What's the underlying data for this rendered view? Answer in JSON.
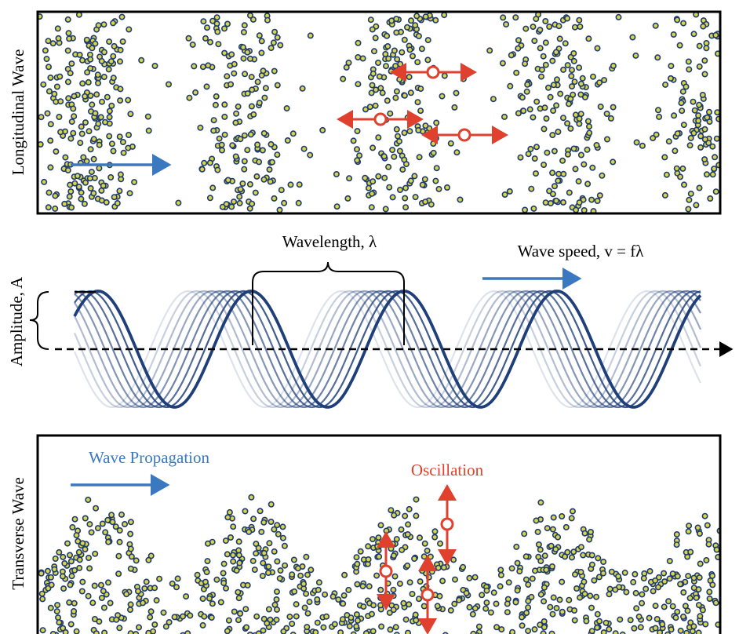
{
  "longitudinal": {
    "label": "Longitudinal Wave"
  },
  "middle": {
    "wavelength_label": "Wavelength, λ",
    "speed_label": "Wave speed, v = fλ",
    "amplitude_label": "Amplitude, A"
  },
  "transverse": {
    "label": "Transverse Wave",
    "propagation_label": "Wave Propagation",
    "oscillation_label": "Oscillation"
  }
}
